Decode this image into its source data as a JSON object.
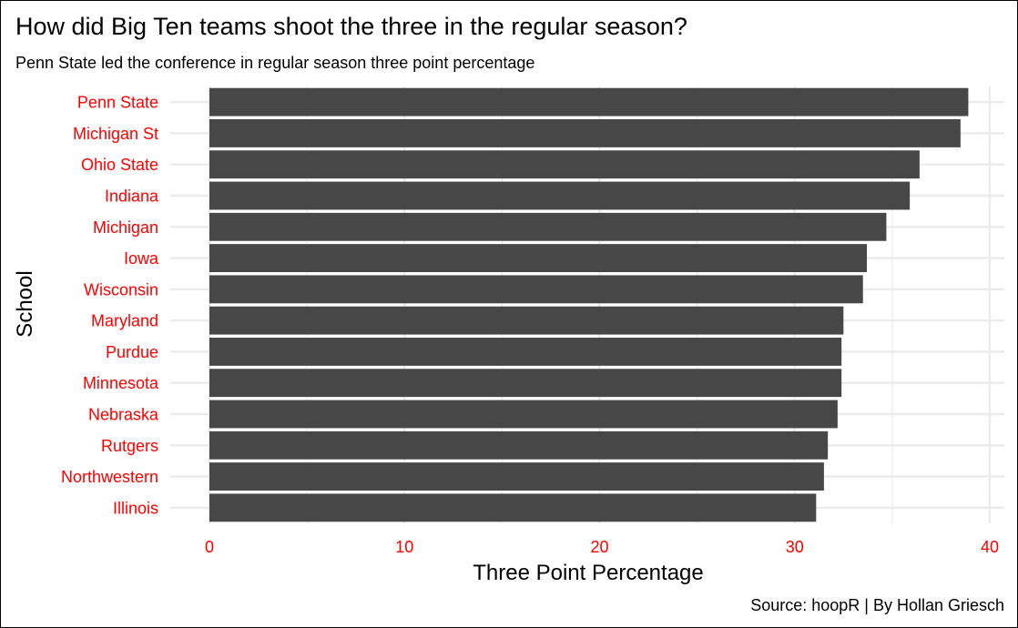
{
  "chart_data": {
    "type": "bar",
    "orientation": "horizontal",
    "title": "How did Big Ten teams shoot the three in the regular season?",
    "subtitle": "Penn State led the conference in regular season three point percentage",
    "caption": "Source: hoopR | By Hollan Griesch",
    "xlabel": "Three Point Percentage",
    "ylabel": "School",
    "categories": [
      "Penn State",
      "Michigan St",
      "Ohio State",
      "Indiana",
      "Michigan",
      "Iowa",
      "Wisconsin",
      "Maryland",
      "Purdue",
      "Minnesota",
      "Nebraska",
      "Rutgers",
      "Northwestern",
      "Illinois"
    ],
    "values": [
      38.9,
      38.5,
      36.4,
      35.9,
      34.7,
      33.7,
      33.5,
      32.5,
      32.4,
      32.4,
      32.2,
      31.7,
      31.5,
      31.1
    ],
    "xlim": [
      0,
      40
    ],
    "xticks": [
      0,
      10,
      20,
      30,
      40
    ],
    "xtick_labels": [
      "0",
      "10",
      "20",
      "30",
      "40"
    ],
    "grid": true,
    "colors": {
      "bar": "#474747",
      "tick_label": "#ff0000",
      "grid": "#ebebeb",
      "text": "#000000",
      "background": "#ffffff"
    }
  }
}
